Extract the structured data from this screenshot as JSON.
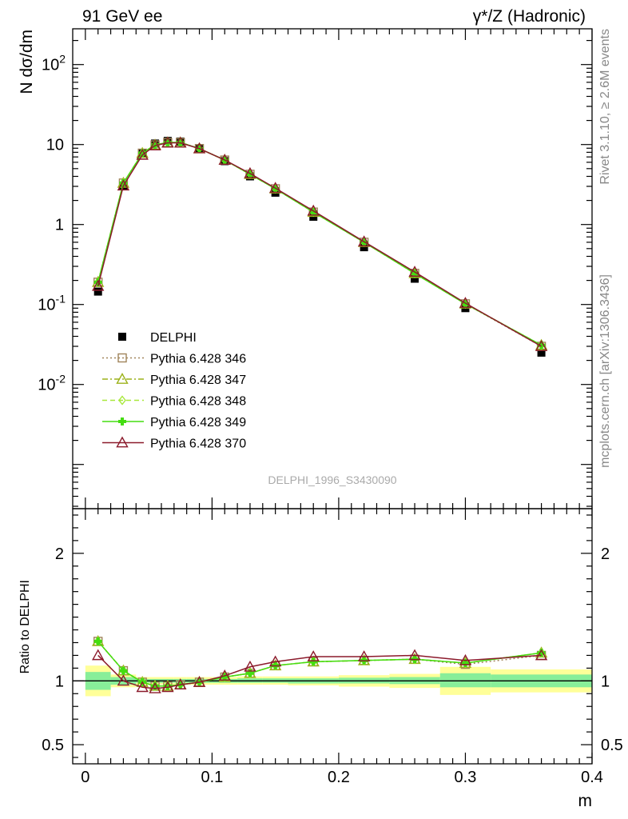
{
  "header": {
    "left_title": "91 GeV ee",
    "right_title": "γ*/Z (Hadronic)"
  },
  "side_labels": {
    "rivet": "Rivet 3.1.10, ≥ 2.6M events",
    "mcplots": "mcplots.cern.ch [arXiv:1306.3436]"
  },
  "watermark": "DELPHI_1996_S3430090",
  "chart_data": [
    {
      "type": "line",
      "title": "",
      "xlabel": "",
      "ylabel": "N dσ/dm",
      "yscale": "log",
      "xlim": [
        -0.01,
        0.4
      ],
      "ylim": [
        0.00028,
        280
      ],
      "x_tick_labels": [],
      "y_tick_labels": [
        "10^-2",
        "10^-1",
        "1",
        "10",
        "10^2"
      ],
      "legend_placement": "middle-left",
      "x": [
        0.01,
        0.03,
        0.045,
        0.055,
        0.065,
        0.075,
        0.09,
        0.11,
        0.13,
        0.15,
        0.18,
        0.22,
        0.26,
        0.3,
        0.36
      ],
      "series": [
        {
          "name": "DELPHI",
          "color": "#000000",
          "marker": "square-filled",
          "values": [
            0.145,
            3.05,
            7.8,
            10.3,
            11.1,
            10.9,
            9.0,
            6.2,
            4.0,
            2.5,
            1.25,
            0.52,
            0.21,
            0.09,
            0.025
          ]
        },
        {
          "name": "Pythia 6.428 346",
          "color": "#a0845a",
          "marker": "square-open",
          "line": "dotted",
          "values": [
            0.19,
            3.3,
            7.8,
            9.9,
            10.6,
            10.6,
            8.9,
            6.4,
            4.25,
            2.8,
            1.43,
            0.6,
            0.245,
            0.102,
            0.03
          ]
        },
        {
          "name": "Pythia 6.428 347",
          "color": "#9cb21a",
          "marker": "triangle-open",
          "line": "dashdot",
          "values": [
            0.19,
            3.3,
            7.8,
            9.9,
            10.6,
            10.6,
            8.9,
            6.4,
            4.25,
            2.8,
            1.43,
            0.6,
            0.245,
            0.102,
            0.031
          ]
        },
        {
          "name": "Pythia 6.428 348",
          "color": "#a8e83a",
          "marker": "diamond-open",
          "line": "dashed",
          "values": [
            0.19,
            3.3,
            7.8,
            9.9,
            10.6,
            10.6,
            8.9,
            6.4,
            4.25,
            2.8,
            1.43,
            0.6,
            0.245,
            0.102,
            0.031
          ]
        },
        {
          "name": "Pythia 6.428 349",
          "color": "#44dd11",
          "marker": "cross-filled",
          "line": "solid",
          "values": [
            0.19,
            3.3,
            7.8,
            9.9,
            10.6,
            10.6,
            8.9,
            6.4,
            4.25,
            2.8,
            1.43,
            0.6,
            0.245,
            0.102,
            0.031
          ]
        },
        {
          "name": "Pythia 6.428 370",
          "color": "#8b1a2b",
          "marker": "triangle-open",
          "line": "solid",
          "values": [
            0.17,
            3.05,
            7.4,
            9.7,
            10.5,
            10.5,
            8.9,
            6.4,
            4.35,
            2.85,
            1.48,
            0.61,
            0.255,
            0.104,
            0.03
          ]
        }
      ]
    },
    {
      "type": "line",
      "title": "",
      "xlabel": "m",
      "ylabel": "Ratio to DELPHI",
      "xlim": [
        -0.01,
        0.4
      ],
      "ylim": [
        0.35,
        2.35
      ],
      "x_tick_labels": [
        "0",
        "0.1",
        "0.2",
        "0.3",
        "0.4"
      ],
      "y_tick_labels": [
        "0.5",
        "1",
        "2"
      ],
      "reference_line": 1.0,
      "bands": [
        {
          "xlo": 0.0,
          "xhi": 0.02,
          "stat_lo": 0.93,
          "stat_hi": 1.07,
          "tot_lo": 0.88,
          "tot_hi": 1.12
        },
        {
          "xlo": 0.02,
          "xhi": 0.04,
          "stat_lo": 0.97,
          "stat_hi": 1.03,
          "tot_lo": 0.95,
          "tot_hi": 1.05
        },
        {
          "xlo": 0.04,
          "xhi": 0.05,
          "stat_lo": 0.985,
          "stat_hi": 1.015,
          "tot_lo": 0.97,
          "tot_hi": 1.03
        },
        {
          "xlo": 0.05,
          "xhi": 0.06,
          "stat_lo": 0.985,
          "stat_hi": 1.015,
          "tot_lo": 0.97,
          "tot_hi": 1.03
        },
        {
          "xlo": 0.06,
          "xhi": 0.07,
          "stat_lo": 0.985,
          "stat_hi": 1.015,
          "tot_lo": 0.97,
          "tot_hi": 1.03
        },
        {
          "xlo": 0.07,
          "xhi": 0.08,
          "stat_lo": 0.985,
          "stat_hi": 1.015,
          "tot_lo": 0.97,
          "tot_hi": 1.03
        },
        {
          "xlo": 0.08,
          "xhi": 0.1,
          "stat_lo": 0.985,
          "stat_hi": 1.015,
          "tot_lo": 0.97,
          "tot_hi": 1.03
        },
        {
          "xlo": 0.1,
          "xhi": 0.12,
          "stat_lo": 0.985,
          "stat_hi": 1.015,
          "tot_lo": 0.97,
          "tot_hi": 1.03
        },
        {
          "xlo": 0.12,
          "xhi": 0.14,
          "stat_lo": 0.985,
          "stat_hi": 1.02,
          "tot_lo": 0.97,
          "tot_hi": 1.035
        },
        {
          "xlo": 0.14,
          "xhi": 0.16,
          "stat_lo": 0.985,
          "stat_hi": 1.02,
          "tot_lo": 0.97,
          "tot_hi": 1.035
        },
        {
          "xlo": 0.16,
          "xhi": 0.2,
          "stat_lo": 0.98,
          "stat_hi": 1.02,
          "tot_lo": 0.965,
          "tot_hi": 1.035
        },
        {
          "xlo": 0.2,
          "xhi": 0.24,
          "stat_lo": 0.98,
          "stat_hi": 1.025,
          "tot_lo": 0.955,
          "tot_hi": 1.045
        },
        {
          "xlo": 0.24,
          "xhi": 0.28,
          "stat_lo": 0.975,
          "stat_hi": 1.03,
          "tot_lo": 0.945,
          "tot_hi": 1.055
        },
        {
          "xlo": 0.28,
          "xhi": 0.32,
          "stat_lo": 0.95,
          "stat_hi": 1.06,
          "tot_lo": 0.89,
          "tot_hi": 1.11
        },
        {
          "xlo": 0.32,
          "xhi": 0.4,
          "stat_lo": 0.95,
          "stat_hi": 1.05,
          "tot_lo": 0.91,
          "tot_hi": 1.09
        }
      ],
      "x": [
        0.01,
        0.03,
        0.045,
        0.055,
        0.065,
        0.075,
        0.09,
        0.11,
        0.13,
        0.15,
        0.18,
        0.22,
        0.26,
        0.3,
        0.36
      ],
      "series": [
        {
          "name": "Pythia 6.428 346",
          "color": "#a0845a",
          "values": [
            1.31,
            1.08,
            0.99,
            0.96,
            0.96,
            0.97,
            0.99,
            1.03,
            1.06,
            1.12,
            1.15,
            1.16,
            1.17,
            1.13,
            1.2
          ]
        },
        {
          "name": "Pythia 6.428 347",
          "color": "#9cb21a",
          "values": [
            1.31,
            1.08,
            0.99,
            0.96,
            0.96,
            0.97,
            0.99,
            1.03,
            1.06,
            1.12,
            1.15,
            1.16,
            1.17,
            1.14,
            1.22
          ]
        },
        {
          "name": "Pythia 6.428 348",
          "color": "#a8e83a",
          "values": [
            1.31,
            1.08,
            0.99,
            0.96,
            0.96,
            0.97,
            0.99,
            1.03,
            1.06,
            1.12,
            1.15,
            1.16,
            1.17,
            1.14,
            1.22
          ]
        },
        {
          "name": "Pythia 6.428 349",
          "color": "#44dd11",
          "values": [
            1.31,
            1.08,
            0.99,
            0.96,
            0.96,
            0.97,
            0.99,
            1.03,
            1.06,
            1.12,
            1.15,
            1.16,
            1.17,
            1.14,
            1.22
          ]
        },
        {
          "name": "Pythia 6.428 370",
          "color": "#8b1a2b",
          "values": [
            1.2,
            1.0,
            0.95,
            0.94,
            0.95,
            0.97,
            0.99,
            1.04,
            1.11,
            1.15,
            1.19,
            1.19,
            1.2,
            1.16,
            1.2
          ]
        }
      ]
    }
  ]
}
